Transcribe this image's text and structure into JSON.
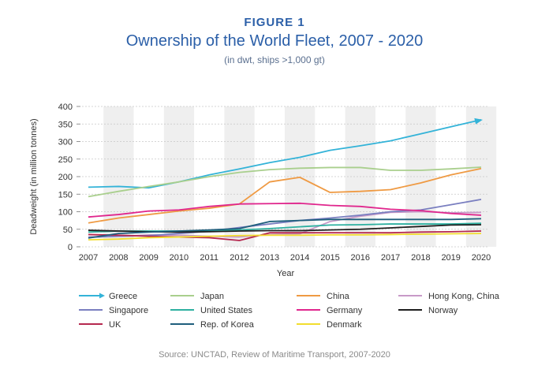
{
  "figure_label": "FIGURE 1",
  "source": "Source: UNCTAD, Review of Maritime Transport, 2007-2020",
  "colors": {
    "title": "#2b5fa8",
    "band": "#efefef",
    "axis_text": "#333333"
  },
  "chart_data": {
    "type": "line",
    "title": "Ownership of the World Fleet, 2007 - 2020",
    "subtitle": "(in dwt, ships >1,000 gt)",
    "xlabel": "Year",
    "ylabel": "Deadweight (in million tonnes)",
    "x": [
      2007,
      2008,
      2009,
      2010,
      2011,
      2012,
      2013,
      2014,
      2015,
      2016,
      2017,
      2018,
      2019,
      2020
    ],
    "xlim": [
      2007,
      2020
    ],
    "ylim": [
      0,
      400
    ],
    "yticks": [
      0,
      50,
      100,
      150,
      200,
      250,
      300,
      350,
      400
    ],
    "legend_position": "bottom",
    "series": [
      {
        "name": "Greece",
        "color": "#33b3d8",
        "arrow": true,
        "values": [
          170,
          172,
          168,
          185,
          205,
          222,
          240,
          255,
          275,
          288,
          302,
          322,
          342,
          362
        ]
      },
      {
        "name": "Japan",
        "color": "#a9cf8d",
        "values": [
          143,
          158,
          172,
          185,
          200,
          212,
          220,
          224,
          226,
          226,
          218,
          218,
          222,
          227
        ]
      },
      {
        "name": "China",
        "color": "#ef9a43",
        "values": [
          68,
          82,
          92,
          102,
          110,
          122,
          185,
          198,
          155,
          158,
          163,
          182,
          205,
          223
        ]
      },
      {
        "name": "Hong Kong, China",
        "color": "#c89ac8",
        "values": [
          28,
          30,
          34,
          33,
          30,
          28,
          35,
          37,
          72,
          87,
          98,
          100,
          97,
          98
        ]
      },
      {
        "name": "Singapore",
        "color": "#7a7fc0",
        "values": [
          27,
          30,
          32,
          38,
          44,
          55,
          65,
          75,
          82,
          90,
          100,
          105,
          120,
          135
        ]
      },
      {
        "name": "United States",
        "color": "#2eb0a0",
        "values": [
          42,
          45,
          45,
          45,
          46,
          48,
          52,
          57,
          62,
          63,
          65,
          65,
          65,
          67
        ]
      },
      {
        "name": "Germany",
        "color": "#e0268d",
        "values": [
          85,
          92,
          102,
          105,
          115,
          122,
          123,
          124,
          118,
          115,
          107,
          103,
          95,
          90
        ]
      },
      {
        "name": "Norway",
        "color": "#1e1e1e",
        "values": [
          47,
          45,
          43,
          42,
          43,
          45,
          46,
          46,
          48,
          50,
          54,
          58,
          62,
          63
        ]
      },
      {
        "name": "UK",
        "color": "#b5284f",
        "values": [
          35,
          33,
          30,
          28,
          26,
          18,
          40,
          40,
          40,
          40,
          40,
          42,
          43,
          45
        ]
      },
      {
        "name": "Rep. of Korea",
        "color": "#1e5e7c",
        "values": [
          25,
          38,
          42,
          45,
          48,
          52,
          72,
          75,
          78,
          78,
          78,
          78,
          78,
          80
        ]
      },
      {
        "name": "Denmark",
        "color": "#f2dd2e",
        "values": [
          20,
          22,
          26,
          28,
          30,
          32,
          33,
          33,
          34,
          34,
          35,
          36,
          37,
          38
        ]
      }
    ]
  }
}
